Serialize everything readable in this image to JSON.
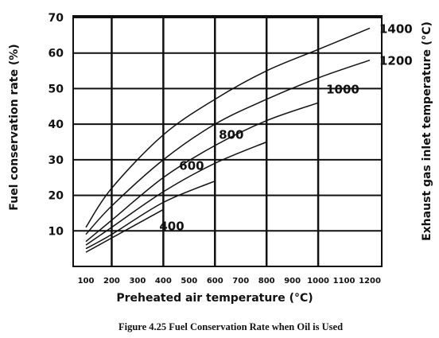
{
  "chart_data": {
    "type": "line",
    "title": "",
    "xlabel": "Preheated air temperature (°C)",
    "ylabel": "Fuel conservation rate (%)",
    "right_label": "Exhaust gas inlet temperature (°C)",
    "caption": "Figure 4.25  Fuel Conservation Rate when Oil is Used",
    "xlim": [
      100,
      1200
    ],
    "ylim": [
      0,
      70
    ],
    "x_ticks": [
      100,
      200,
      300,
      400,
      500,
      600,
      700,
      800,
      900,
      1000,
      1100,
      1200
    ],
    "y_ticks": [
      10,
      20,
      30,
      40,
      50,
      60,
      70
    ],
    "grid": true,
    "series": [
      {
        "name": "1400",
        "x": [
          100,
          200,
          400,
          600,
          800,
          1000,
          1200
        ],
        "values": [
          11,
          22,
          37,
          47,
          55,
          61,
          67
        ]
      },
      {
        "name": "1200",
        "x": [
          100,
          200,
          400,
          600,
          800,
          1000,
          1200
        ],
        "values": [
          9,
          17,
          30,
          40,
          47,
          53,
          58
        ]
      },
      {
        "name": "1000",
        "x": [
          100,
          200,
          400,
          600,
          800,
          1000
        ],
        "values": [
          7,
          13,
          25,
          34,
          41,
          46
        ]
      },
      {
        "name": "800",
        "x": [
          100,
          200,
          400,
          600,
          800
        ],
        "values": [
          6,
          11,
          21,
          29,
          35
        ]
      },
      {
        "name": "600",
        "x": [
          100,
          200,
          400,
          600
        ],
        "values": [
          5,
          9,
          18,
          24
        ]
      },
      {
        "name": "400",
        "x": [
          100,
          200,
          400
        ],
        "values": [
          4,
          8,
          16
        ]
      }
    ]
  }
}
